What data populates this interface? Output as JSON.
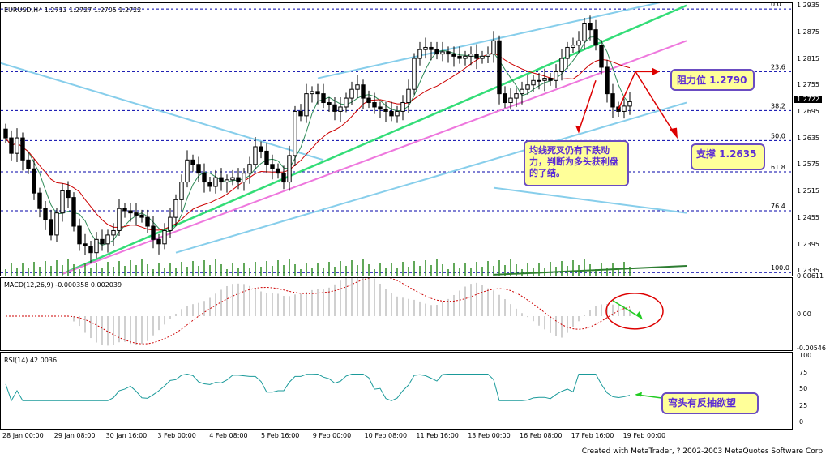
{
  "chart_data": {
    "type": "candlestick",
    "symbol": "EURUSD,H4",
    "ohlc": {
      "open": "1.2712",
      "high": "1.2727",
      "low": "1.2705",
      "close": "1.2722"
    },
    "header": "EURUSD,H4  1.2712 1.2727 1.2705 1.2722",
    "price_ylim": [
      1.2328,
      1.2945
    ],
    "price_ticks": [
      "1.2935",
      "1.2875",
      "1.2815",
      "1.2755",
      "1.2695",
      "1.2635",
      "1.2575",
      "1.2515",
      "1.2455",
      "1.2395",
      "1.2335"
    ],
    "current_price": "1.2722",
    "x_tick_labels": [
      "28 Jan 00:00",
      "29 Jan 08:00",
      "30 Jan 16:00",
      "3 Feb 00:00",
      "4 Feb 08:00",
      "5 Feb 16:00",
      "9 Feb 00:00",
      "10 Feb 08:00",
      "11 Feb 16:00",
      "13 Feb 00:00",
      "16 Feb 08:00",
      "17 Feb 16:00",
      "19 Feb 00:00"
    ],
    "fibonacci": [
      {
        "label": "0.0",
        "price": 1.2932
      },
      {
        "label": "23.6",
        "price": 1.279
      },
      {
        "label": "38.2",
        "price": 1.2702
      },
      {
        "label": "50.0",
        "price": 1.2634
      },
      {
        "label": "61.8",
        "price": 1.2563
      },
      {
        "label": "76.4",
        "price": 1.2475
      },
      {
        "label": "100.0",
        "price": 1.2335
      }
    ],
    "candles_close": [
      1.264,
      1.2605,
      1.264,
      1.259,
      1.257,
      1.2515,
      1.248,
      1.2455,
      1.242,
      1.247,
      1.252,
      1.2505,
      1.244,
      1.24,
      1.2395,
      1.238,
      1.241,
      1.24,
      1.242,
      1.243,
      1.248,
      1.2475,
      1.247,
      1.2465,
      1.246,
      1.244,
      1.241,
      1.24,
      1.243,
      1.246,
      1.25,
      1.254,
      1.259,
      1.258,
      1.256,
      1.254,
      1.253,
      1.255,
      1.254,
      1.2545,
      1.255,
      1.254,
      1.256,
      1.258,
      1.262,
      1.261,
      1.258,
      1.257,
      1.256,
      1.254,
      1.26,
      1.27,
      1.269,
      1.274,
      1.2745,
      1.274,
      1.272,
      1.2715,
      1.27,
      1.271,
      1.273,
      1.275,
      1.276,
      1.273,
      1.272,
      1.271,
      1.2705,
      1.27,
      1.269,
      1.27,
      1.272,
      1.275,
      1.282,
      1.284,
      1.2845,
      1.284,
      1.283,
      1.2835,
      1.283,
      1.2825,
      1.282,
      1.2825,
      1.283,
      1.282,
      1.2825,
      1.283,
      1.286,
      1.274,
      1.272,
      1.273,
      1.274,
      1.275,
      1.276,
      1.277,
      1.277,
      1.2775,
      1.277,
      1.279,
      1.282,
      1.2845,
      1.285,
      1.286,
      1.29,
      1.2885,
      1.285,
      1.28,
      1.274,
      1.271,
      1.27,
      1.2712,
      1.2722
    ],
    "macd": {
      "label": "MACD(12,26,9)  -0.000358  0.002039",
      "ylim": [
        -0.00546,
        0.00611
      ],
      "ticks": [
        "0.00611",
        "0.00",
        "-0.00546"
      ]
    },
    "rsi": {
      "label": "RSI(14)  42.0036",
      "ylim": [
        0,
        100
      ],
      "ticks": [
        "100",
        "75",
        "50",
        "25",
        "0"
      ]
    }
  },
  "annotations": {
    "resistance": "阻力位 1.2790",
    "support": "支撑 1.2635",
    "main_comment": "均线死叉仍有下跌动力，判断为多头获利盘的了结。",
    "rsi_comment": "弯头有反抽欲望"
  },
  "footer": "Created with MetaTrader, ? 2002-2003 MetaQuotes Software Corp.",
  "colors": {
    "bull_candle": "#000000",
    "bear_candle": "#000000",
    "ma_fast": "#2e8b57",
    "ma_slow": "#cc0000",
    "channel_upper": "#87ceeb",
    "trend_green": "#33dd77",
    "trend_violet": "#ee77dd",
    "fib_lines": "#0000aa",
    "volume": "#2e8b22",
    "macd_hist": "#c0c0c0",
    "macd_signal": "#cc0000",
    "rsi_line": "#1a9a9a",
    "note_bg": "#ffff99",
    "note_border": "#6a4cc2",
    "note_text": "#5b2bd6",
    "arrow_red": "#dd0000",
    "arrow_green": "#22cc22"
  }
}
